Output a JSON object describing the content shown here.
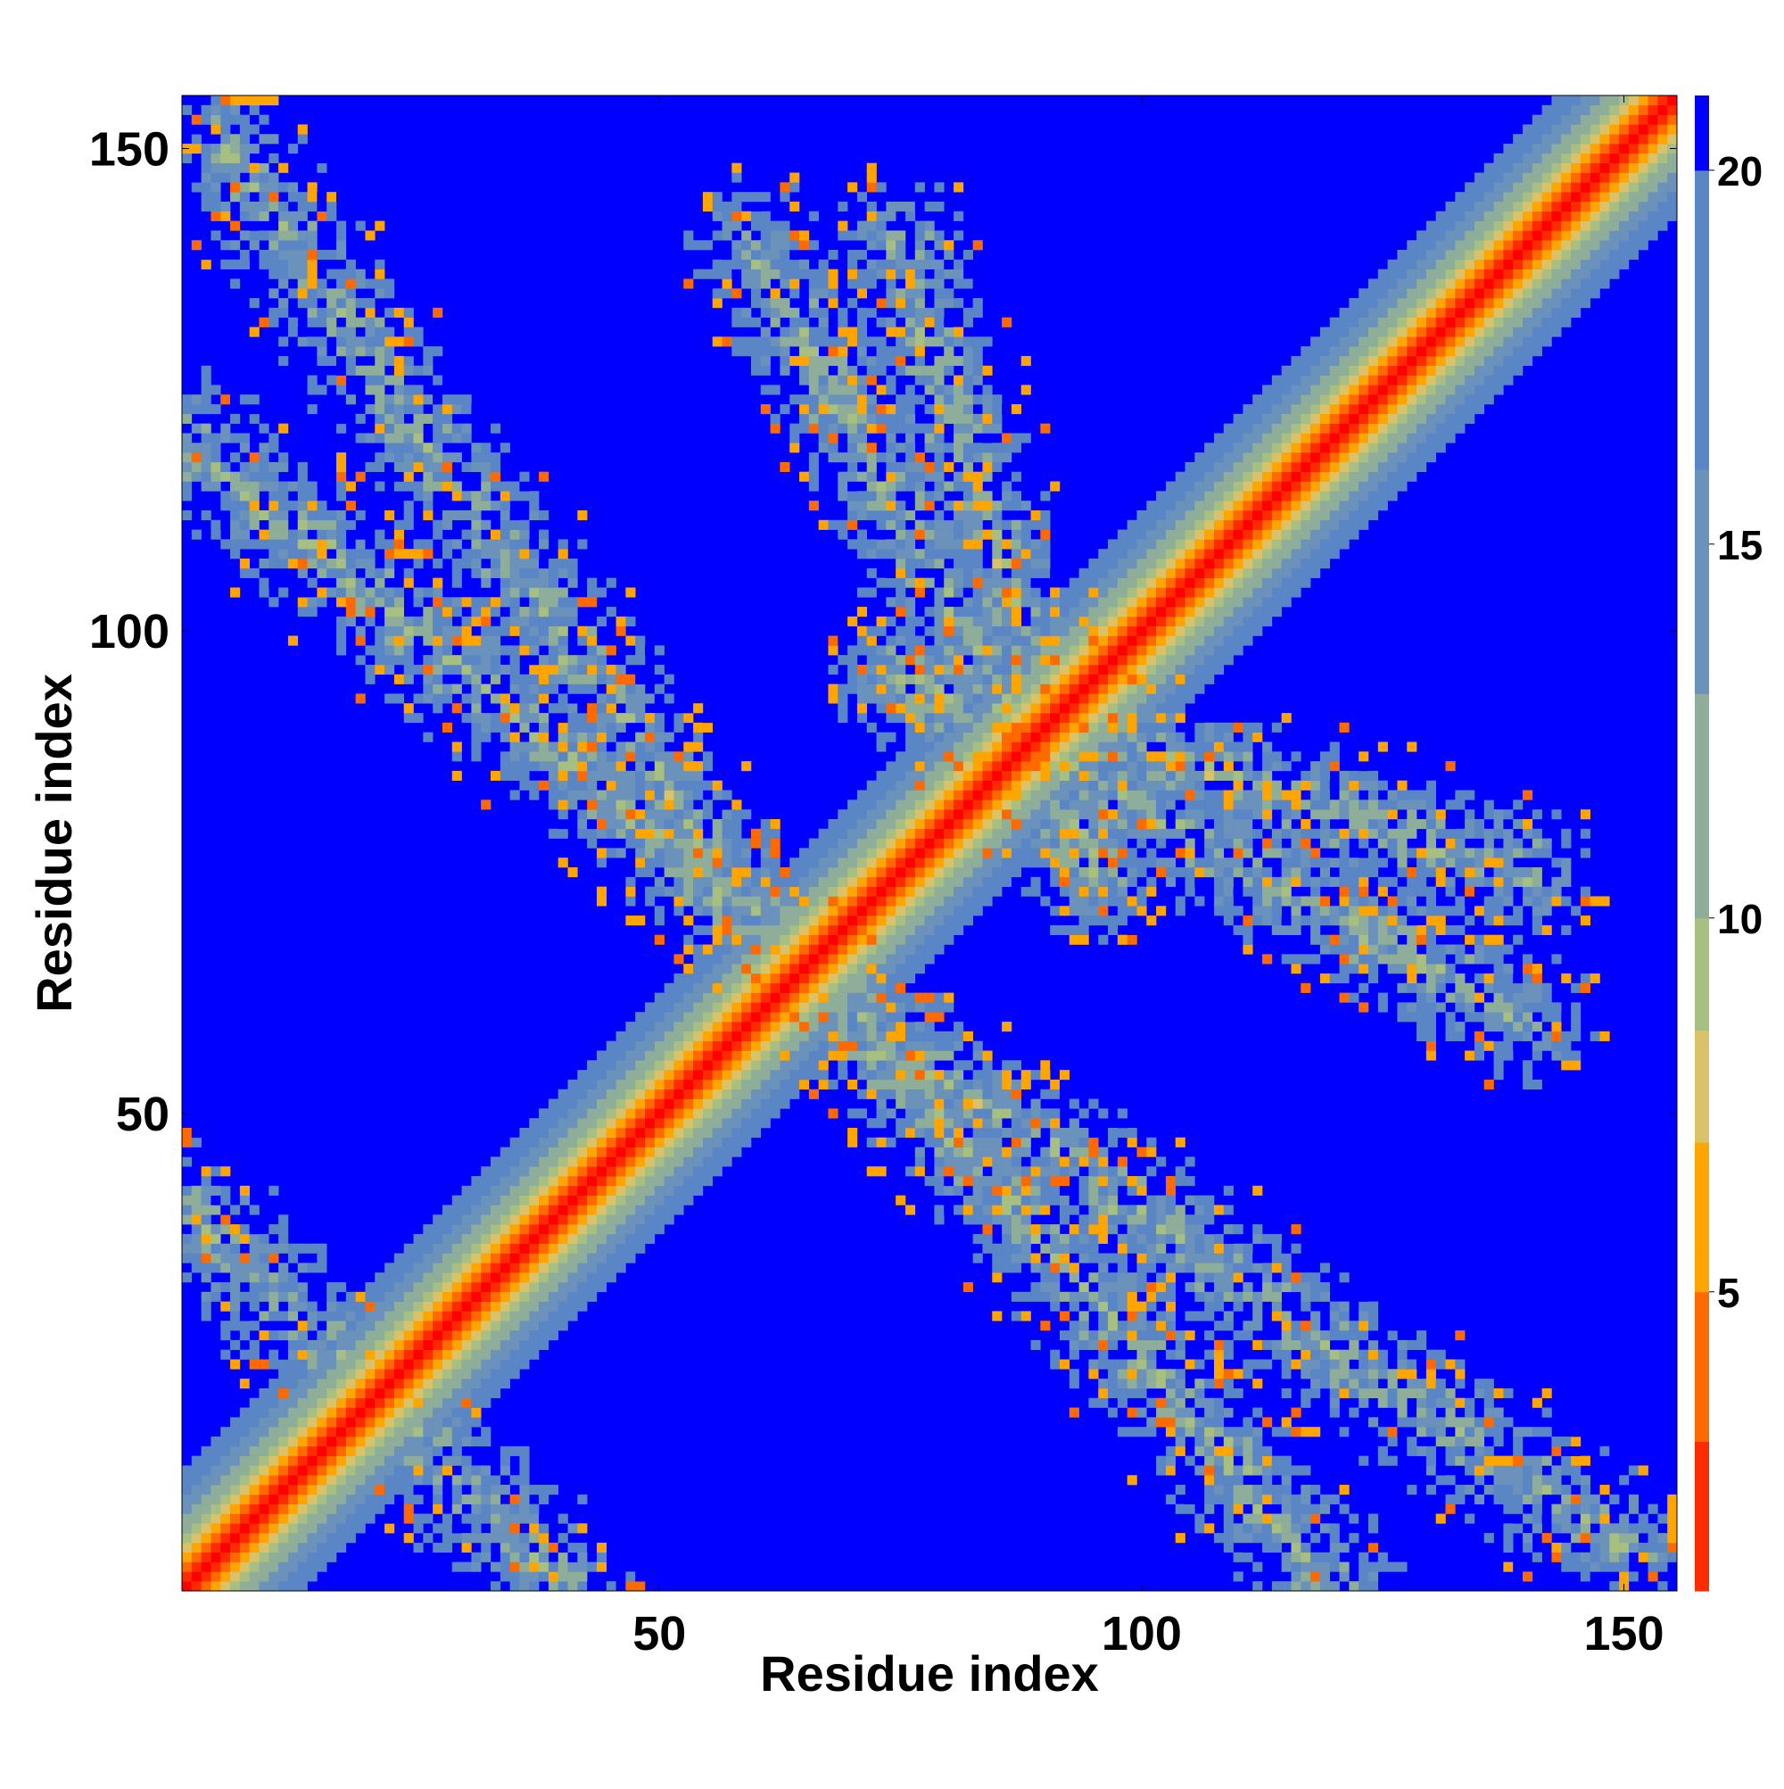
{
  "chart_data": {
    "type": "heatmap",
    "title": "",
    "xlabel": "Residue index",
    "ylabel": "Residue index",
    "xlim": [
      1,
      155
    ],
    "ylim": [
      1,
      155
    ],
    "x_ticks": [
      50,
      100,
      150
    ],
    "y_ticks": [
      50,
      100,
      150
    ],
    "colorbar": {
      "ticks": [
        5,
        10,
        15,
        20
      ],
      "range": [
        1,
        21
      ],
      "stops": [
        {
          "value": 1,
          "color": "#ff0000"
        },
        {
          "value": 3,
          "color": "#ff2a00"
        },
        {
          "value": 5,
          "color": "#ff6a00"
        },
        {
          "value": 7,
          "color": "#ffa500"
        },
        {
          "value": 8.5,
          "color": "#d9c26a"
        },
        {
          "value": 10,
          "color": "#a8bf82"
        },
        {
          "value": 13,
          "color": "#8eae9a"
        },
        {
          "value": 16,
          "color": "#6b92ba"
        },
        {
          "value": 20,
          "color": "#5a86c6"
        },
        {
          "value": 20.5,
          "color": "#0000ff"
        }
      ],
      "background_color": "#0000ff"
    },
    "value_meaning": "pairwise residue distance (colored from red = small to blue = large)",
    "structure": {
      "main_diagonal": {
        "description": "symmetric band along i=j, minimum values at the diagonal, rising with |i-j|"
      },
      "contact_bands": [
        {
          "from": [
            1,
            40
          ],
          "to": [
            40,
            1
          ],
          "description": "antiparallel band near lower-left"
        },
        {
          "from": [
            1,
            120
          ],
          "to": [
            60,
            70
          ],
          "description": "upper-left band"
        },
        {
          "from": [
            70,
            60
          ],
          "to": [
            150,
            5
          ],
          "description": "lower-right band"
        },
        {
          "from": [
            60,
            140
          ],
          "to": [
            95,
            75
          ],
          "description": "upper middle lobe"
        },
        {
          "from": [
            75,
            95
          ],
          "to": [
            140,
            75
          ],
          "description": "right middle lobe"
        }
      ]
    }
  }
}
